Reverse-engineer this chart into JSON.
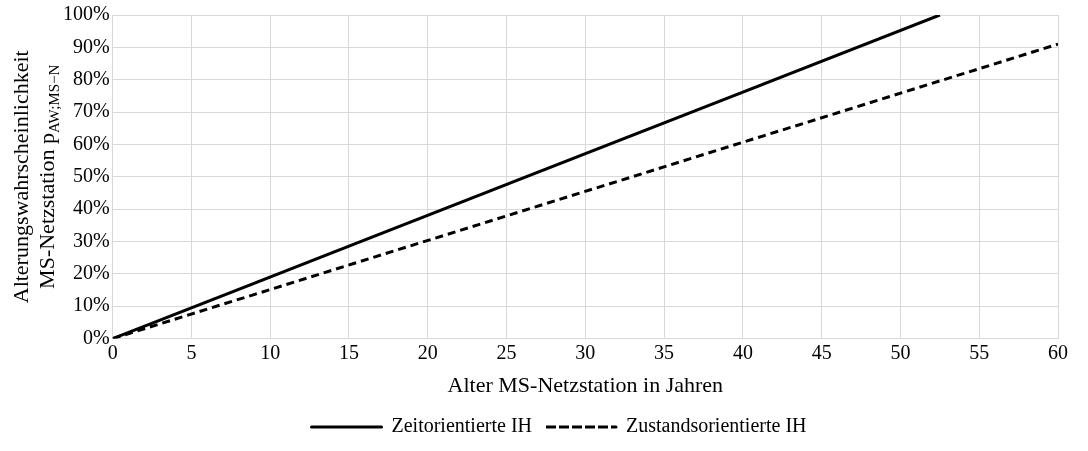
{
  "chart_data": {
    "type": "line",
    "xlabel": "Alter MS-Netzstation in Jahren",
    "ylabel": "Alterungswahrscheinlichkeit MS-Netzstation p$_{AW;MS−N}$",
    "series": [
      {
        "name": "Zeitorientierte IH",
        "color": "#000000",
        "x": [
          0,
          52.5
        ],
        "values": [
          0,
          100
        ],
        "line_style": "solid"
      },
      {
        "name": "Zustandsorientierte IH",
        "color": "#000000",
        "x": [
          0,
          60
        ],
        "values": [
          0,
          91
        ],
        "line_style": "dashed"
      }
    ],
    "xlim": [
      0,
      60
    ],
    "xticks": [
      0,
      5,
      10,
      15,
      20,
      25,
      30,
      35,
      40,
      45,
      50,
      55,
      60
    ],
    "ylim": [
      0,
      100
    ],
    "yticks": [
      {
        "value": 0,
        "label": "0%"
      },
      {
        "value": 10,
        "label": "10%"
      },
      {
        "value": 20,
        "label": "20%"
      },
      {
        "value": 30,
        "label": "30%"
      },
      {
        "value": 40,
        "label": "40%"
      },
      {
        "value": 50,
        "label": "50%"
      },
      {
        "value": 60,
        "label": "60%"
      },
      {
        "value": 70,
        "label": "70%"
      },
      {
        "value": 80,
        "label": "80%"
      },
      {
        "value": 90,
        "label": "90%"
      },
      {
        "value": 100,
        "label": "100%"
      }
    ],
    "grid": true,
    "legend": "bottom",
    "marker": "none"
  }
}
